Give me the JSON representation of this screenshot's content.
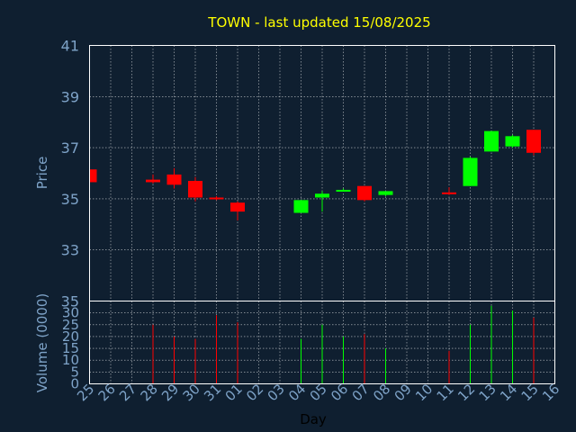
{
  "chart_data": {
    "type": "candlestick",
    "title": "TOWN - last updated 15/08/2025",
    "xlabel": "Day",
    "price_ylabel": "Price",
    "volume_ylabel": "Volume (0000)",
    "price_ylim": [
      31,
      41
    ],
    "price_yticks": [
      33,
      35,
      37,
      39,
      41
    ],
    "volume_ylim": [
      0,
      35
    ],
    "volume_yticks": [
      0,
      5,
      10,
      15,
      20,
      25,
      30,
      35
    ],
    "x_labels": [
      "25",
      "26",
      "27",
      "28",
      "29",
      "30",
      "31",
      "01",
      "02",
      "03",
      "04",
      "05",
      "06",
      "07",
      "08",
      "09",
      "10",
      "11",
      "12",
      "13",
      "14",
      "15",
      "16"
    ],
    "candles": [
      {
        "day": "25",
        "open": 36.15,
        "close": 35.65,
        "high": 36.15,
        "low": 35.65,
        "volume": 0
      },
      {
        "day": "28",
        "open": 35.75,
        "close": 35.65,
        "high": 35.95,
        "low": 35.6,
        "volume": 25
      },
      {
        "day": "29",
        "open": 35.95,
        "close": 35.55,
        "high": 36.2,
        "low": 35.4,
        "volume": 20
      },
      {
        "day": "30",
        "open": 35.7,
        "close": 35.05,
        "high": 35.85,
        "low": 34.9,
        "volume": 19
      },
      {
        "day": "31",
        "open": 35.05,
        "close": 35.0,
        "high": 35.1,
        "low": 34.95,
        "volume": 29
      },
      {
        "day": "01",
        "open": 34.85,
        "close": 34.5,
        "high": 34.9,
        "low": 34.15,
        "volume": 26
      },
      {
        "day": "04",
        "open": 34.45,
        "close": 34.95,
        "high": 34.95,
        "low": 34.45,
        "volume": 19
      },
      {
        "day": "05",
        "open": 35.05,
        "close": 35.2,
        "high": 35.3,
        "low": 34.5,
        "volume": 25
      },
      {
        "day": "06",
        "open": 35.3,
        "close": 35.35,
        "high": 35.4,
        "low": 35.3,
        "volume": 20
      },
      {
        "day": "07",
        "open": 35.5,
        "close": 34.95,
        "high": 35.5,
        "low": 34.9,
        "volume": 21
      },
      {
        "day": "08",
        "open": 35.15,
        "close": 35.3,
        "high": 35.3,
        "low": 35.1,
        "volume": 15
      },
      {
        "day": "11",
        "open": 35.25,
        "close": 35.2,
        "high": 35.45,
        "low": 35.15,
        "volume": 14
      },
      {
        "day": "12",
        "open": 35.5,
        "close": 36.6,
        "high": 36.65,
        "low": 35.5,
        "volume": 25
      },
      {
        "day": "13",
        "open": 36.85,
        "close": 37.65,
        "high": 37.65,
        "low": 36.85,
        "volume": 33
      },
      {
        "day": "14",
        "open": 37.05,
        "close": 37.45,
        "high": 37.5,
        "low": 37.0,
        "volume": 31
      },
      {
        "day": "15",
        "open": 37.7,
        "close": 36.8,
        "high": 37.7,
        "low": 36.7,
        "volume": 28
      }
    ],
    "colors": {
      "up": "#00ff00",
      "down": "#ff0000",
      "title": "#ffff00",
      "axis_text": "#7ea3c8",
      "background": "#0f1f30",
      "grid": "#ffffff"
    }
  }
}
